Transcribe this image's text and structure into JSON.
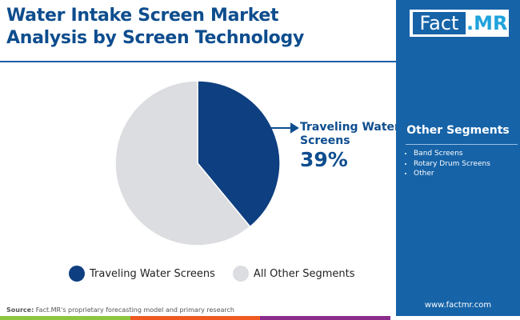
{
  "title_line1": "Water Intake Screen Market",
  "title_line2": "Analysis by Screen Technology",
  "logo": {
    "left": "Fact",
    "right": ".MR"
  },
  "chart_data": {
    "type": "pie",
    "values": [
      39,
      61
    ],
    "labels": [
      "Traveling Water Screens",
      "All Other Segments"
    ],
    "colors": [
      "#0e3f80",
      "#dcdde1"
    ],
    "callout": {
      "label": "Traveling Water Screens",
      "value": "39%"
    },
    "legend_position": "bottom"
  },
  "callout": {
    "line1": "Traveling Water",
    "line2": "Screens",
    "value": "39%"
  },
  "other_segments": {
    "heading": "Other Segments",
    "items": [
      "Band Screens",
      "Rotary Drum Screens",
      "Other"
    ]
  },
  "source": {
    "label": "Source:",
    "text": " Fact.MR's proprietary forecasting model and primary research"
  },
  "website": "www.factmr.com",
  "bar_colors": [
    "#8dc63f",
    "#f05a22",
    "#8b2c8c",
    "#ffffff"
  ]
}
